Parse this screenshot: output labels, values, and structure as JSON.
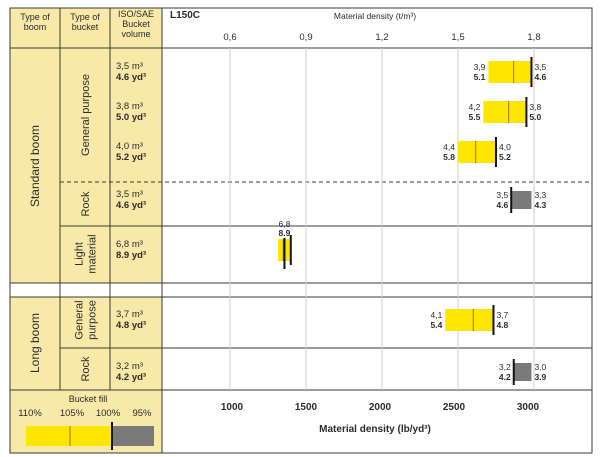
{
  "headers": {
    "type_of_boom": [
      "Type of",
      "boom"
    ],
    "type_of_bucket": [
      "Type of",
      "bucket"
    ],
    "bucket_volume": [
      "ISO/SAE",
      "Bucket",
      "volume"
    ],
    "model": "L150C",
    "density_top": "Material density (t/m³)",
    "density_bottom": "Material density (lb/yd³)"
  },
  "boom_groups": [
    {
      "name": "Standard boom"
    },
    {
      "name": "Long boom"
    }
  ],
  "bucket_types": [
    {
      "lines": [
        "General purpose"
      ]
    },
    {
      "lines": [
        "Rock"
      ]
    },
    {
      "lines": [
        "Light",
        "material"
      ]
    },
    {
      "lines": [
        "General",
        "purpose"
      ]
    },
    {
      "lines": [
        "Rock"
      ]
    }
  ],
  "legend": {
    "title": "Bucket fill",
    "labels": [
      "110%",
      "105%",
      "100%",
      "95%"
    ]
  },
  "colors": {
    "fill": "#ffe600",
    "rock": "#7a7a7a",
    "panel": "#f8e9a8",
    "grid": "#3a3a3a",
    "text": "#2b2b2b"
  },
  "chart_data": {
    "type": "range-bar",
    "top_axis": {
      "label": "Material density (t/m³)",
      "ticks": [
        0.6,
        0.9,
        1.2,
        1.5,
        1.8
      ],
      "tick_labels": [
        "0,6",
        "0,9",
        "1,2",
        "1,5",
        "1,8"
      ]
    },
    "bottom_axis": {
      "label": "Material density (lb/yd³)",
      "ticks": [
        1000,
        1500,
        2000,
        2500,
        3000
      ],
      "tick_labels": [
        "1000",
        "1500",
        "2000",
        "2500",
        "3000"
      ]
    },
    "rows": [
      {
        "boom": "Standard boom",
        "bucket": "General purpose",
        "volume_m3": "3,5 m³",
        "volume_yd3": "4.6 yd³",
        "left_t": "3,9",
        "left_lb": "5.1",
        "right_t": "3,5",
        "right_lb": "4.6",
        "range_t": [
          1.62,
          1.79
        ],
        "line_t": 1.72,
        "rock": false
      },
      {
        "boom": "Standard boom",
        "bucket": "General purpose",
        "volume_m3": "3,8 m³",
        "volume_yd3": "5.0 yd³",
        "left_t": "4,2",
        "left_lb": "5.5",
        "right_t": "3,8",
        "right_lb": "5.0",
        "range_t": [
          1.6,
          1.77
        ],
        "line_t": 1.7,
        "rock": false
      },
      {
        "boom": "Standard boom",
        "bucket": "General purpose",
        "volume_m3": "4,0 m³",
        "volume_yd3": "5.2 yd³",
        "left_t": "4,4",
        "left_lb": "5.8",
        "right_t": "4,0",
        "right_lb": "5.2",
        "range_t": [
          1.5,
          1.65
        ],
        "line_t": 1.57,
        "rock": false
      },
      {
        "boom": "Standard boom",
        "bucket": "Rock",
        "volume_m3": "3,5 m³",
        "volume_yd3": "4.6 yd³",
        "left_t": "3,5",
        "left_lb": "4.6",
        "right_t": "3,3",
        "right_lb": "4.3",
        "range_t": [
          1.71,
          1.79
        ],
        "line_t": 1.71,
        "rock": true
      },
      {
        "boom": "Standard boom",
        "bucket": "Light material",
        "volume_m3": "6,8 m³",
        "volume_yd3": "8.9 yd³",
        "top_t": "6,8",
        "top_lb": "8.9",
        "range_t": [
          0.79,
          0.84
        ],
        "line_t": 0.81,
        "rock": false
      },
      {
        "boom": "Long boom",
        "bucket": "General purpose",
        "volume_m3": "3,7 m³",
        "volume_yd3": "4.8 yd³",
        "left_t": "4,1",
        "left_lb": "5.4",
        "right_t": "3,7",
        "right_lb": "4.8",
        "range_t": [
          1.45,
          1.64
        ],
        "line_t": 1.56,
        "rock": false
      },
      {
        "boom": "Long boom",
        "bucket": "Rock",
        "volume_m3": "3,2 m³",
        "volume_yd3": "4.2 yd³",
        "left_t": "3,2",
        "left_lb": "4.2",
        "right_t": "3,0",
        "right_lb": "3.9",
        "range_t": [
          1.72,
          1.79
        ],
        "line_t": 1.72,
        "rock": true
      }
    ]
  }
}
